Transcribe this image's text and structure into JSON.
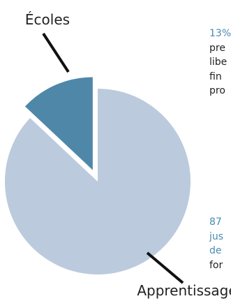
{
  "chart_data": {
    "type": "pie",
    "slices": [
      {
        "label": "Écoles",
        "value": 13,
        "color": "#4f87a9",
        "exploded": true
      },
      {
        "label": "Apprentissage",
        "value": 87,
        "color": "#bccadd",
        "exploded": false
      }
    ]
  },
  "annotations": {
    "schools": {
      "lines": [
        {
          "text": "13%",
          "style": "accent"
        },
        {
          "text": "pre",
          "style": "dark"
        },
        {
          "text": "libe",
          "style": "dark"
        },
        {
          "text": "fin",
          "style": "dark"
        },
        {
          "text": "pro",
          "style": "dark"
        }
      ]
    },
    "apprenticeship": {
      "lines": [
        {
          "text": "87",
          "style": "accent"
        },
        {
          "text": "jus",
          "style": "accent"
        },
        {
          "text": "de",
          "style": "accent"
        },
        {
          "text": "for",
          "style": "dark"
        }
      ]
    }
  },
  "colors": {
    "accent_text": "#4a8bb0",
    "leader_line": "#111111"
  }
}
